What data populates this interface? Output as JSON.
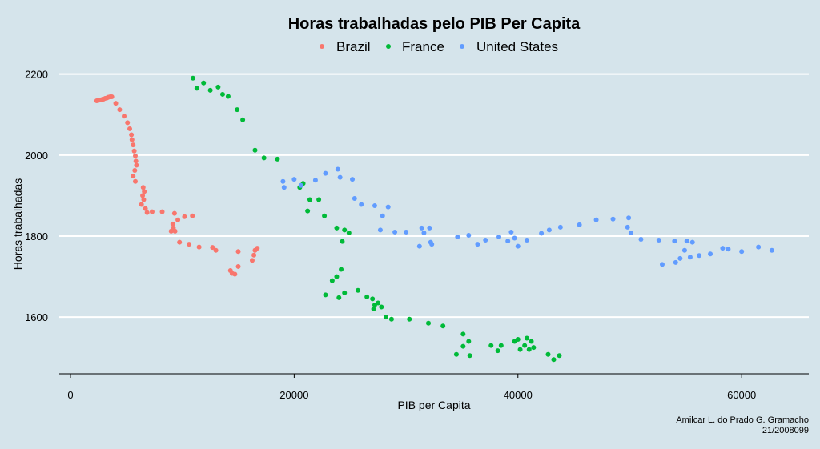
{
  "chart_data": {
    "type": "scatter",
    "title": "Horas trabalhadas pelo PIB Per Capita",
    "xlabel": "PIB per Capita",
    "ylabel": "Horas trabalhadas",
    "xlim": [
      -1000,
      66000
    ],
    "ylim": [
      1460,
      2225
    ],
    "x_ticks": [
      0,
      20000,
      40000,
      60000
    ],
    "y_ticks": [
      1600,
      1800,
      2000,
      2200
    ],
    "grid": "horizontal-major",
    "legend_position": "top",
    "series": [
      {
        "name": "Brazil",
        "color": "#f8766d",
        "points": [
          [
            2350,
            2134
          ],
          [
            2500,
            2135
          ],
          [
            2650,
            2136
          ],
          [
            2800,
            2137
          ],
          [
            2950,
            2138
          ],
          [
            3100,
            2140
          ],
          [
            3250,
            2141
          ],
          [
            3400,
            2143
          ],
          [
            3550,
            2144
          ],
          [
            3700,
            2144
          ],
          [
            4050,
            2128
          ],
          [
            4400,
            2112
          ],
          [
            4800,
            2096
          ],
          [
            5100,
            2080
          ],
          [
            5300,
            2065
          ],
          [
            5450,
            2050
          ],
          [
            5500,
            2038
          ],
          [
            5600,
            2025
          ],
          [
            5700,
            2010
          ],
          [
            5800,
            1998
          ],
          [
            5850,
            1985
          ],
          [
            5900,
            1975
          ],
          [
            5750,
            1962
          ],
          [
            5600,
            1948
          ],
          [
            5800,
            1935
          ],
          [
            6500,
            1920
          ],
          [
            6600,
            1910
          ],
          [
            6450,
            1900
          ],
          [
            6550,
            1890
          ],
          [
            6350,
            1878
          ],
          [
            6700,
            1868
          ],
          [
            6850,
            1858
          ],
          [
            7300,
            1860
          ],
          [
            8200,
            1860
          ],
          [
            9300,
            1856
          ],
          [
            10200,
            1848
          ],
          [
            10900,
            1850
          ],
          [
            9600,
            1840
          ],
          [
            9150,
            1830
          ],
          [
            9200,
            1820
          ],
          [
            9350,
            1812
          ],
          [
            9000,
            1812
          ],
          [
            9750,
            1785
          ],
          [
            10600,
            1780
          ],
          [
            11500,
            1773
          ],
          [
            12700,
            1772
          ],
          [
            13000,
            1765
          ],
          [
            14300,
            1715
          ],
          [
            14450,
            1708
          ],
          [
            14700,
            1706
          ],
          [
            15000,
            1725
          ],
          [
            15000,
            1762
          ],
          [
            16250,
            1740
          ],
          [
            16400,
            1753
          ],
          [
            16500,
            1765
          ],
          [
            16700,
            1770
          ]
        ]
      },
      {
        "name": "France",
        "color": "#00ba38",
        "points": [
          [
            10950,
            2190
          ],
          [
            11300,
            2165
          ],
          [
            11900,
            2178
          ],
          [
            12500,
            2160
          ],
          [
            13200,
            2168
          ],
          [
            13600,
            2150
          ],
          [
            14100,
            2145
          ],
          [
            14900,
            2112
          ],
          [
            15400,
            2087
          ],
          [
            16500,
            2012
          ],
          [
            17300,
            1993
          ],
          [
            18500,
            1990
          ],
          [
            20500,
            1920
          ],
          [
            20800,
            1930
          ],
          [
            21400,
            1890
          ],
          [
            21200,
            1862
          ],
          [
            22200,
            1890
          ],
          [
            22700,
            1850
          ],
          [
            23800,
            1820
          ],
          [
            24300,
            1787
          ],
          [
            24500,
            1815
          ],
          [
            24900,
            1808
          ],
          [
            22800,
            1655
          ],
          [
            23400,
            1690
          ],
          [
            23800,
            1700
          ],
          [
            24200,
            1718
          ],
          [
            24500,
            1660
          ],
          [
            24000,
            1648
          ],
          [
            25700,
            1666
          ],
          [
            26500,
            1650
          ],
          [
            27000,
            1645
          ],
          [
            27200,
            1630
          ],
          [
            27500,
            1635
          ],
          [
            27800,
            1625
          ],
          [
            27100,
            1620
          ],
          [
            28200,
            1600
          ],
          [
            28700,
            1595
          ],
          [
            30300,
            1595
          ],
          [
            32000,
            1585
          ],
          [
            33300,
            1578
          ],
          [
            34500,
            1508
          ],
          [
            35100,
            1558
          ],
          [
            35100,
            1528
          ],
          [
            35600,
            1540
          ],
          [
            35700,
            1505
          ],
          [
            37600,
            1530
          ],
          [
            38200,
            1517
          ],
          [
            38500,
            1530
          ],
          [
            39700,
            1540
          ],
          [
            40000,
            1545
          ],
          [
            40200,
            1520
          ],
          [
            40600,
            1530
          ],
          [
            40800,
            1548
          ],
          [
            41000,
            1520
          ],
          [
            41200,
            1540
          ],
          [
            41400,
            1525
          ],
          [
            42700,
            1508
          ],
          [
            43200,
            1495
          ],
          [
            43700,
            1505
          ]
        ]
      },
      {
        "name": "United States",
        "color": "#619cff",
        "points": [
          [
            19000,
            1935
          ],
          [
            19100,
            1920
          ],
          [
            20000,
            1940
          ],
          [
            20600,
            1925
          ],
          [
            21900,
            1938
          ],
          [
            22800,
            1955
          ],
          [
            23900,
            1965
          ],
          [
            24100,
            1945
          ],
          [
            25200,
            1940
          ],
          [
            25400,
            1893
          ],
          [
            26000,
            1878
          ],
          [
            27200,
            1875
          ],
          [
            27900,
            1850
          ],
          [
            28400,
            1872
          ],
          [
            27700,
            1815
          ],
          [
            29000,
            1810
          ],
          [
            30000,
            1810
          ],
          [
            31200,
            1775
          ],
          [
            31400,
            1820
          ],
          [
            31600,
            1808
          ],
          [
            32100,
            1820
          ],
          [
            32200,
            1785
          ],
          [
            32300,
            1780
          ],
          [
            34600,
            1798
          ],
          [
            35600,
            1802
          ],
          [
            36400,
            1780
          ],
          [
            37100,
            1790
          ],
          [
            38300,
            1798
          ],
          [
            39100,
            1788
          ],
          [
            39400,
            1810
          ],
          [
            39700,
            1795
          ],
          [
            40000,
            1775
          ],
          [
            40800,
            1790
          ],
          [
            42100,
            1807
          ],
          [
            42800,
            1815
          ],
          [
            43800,
            1822
          ],
          [
            45500,
            1828
          ],
          [
            47000,
            1840
          ],
          [
            48500,
            1842
          ],
          [
            49800,
            1822
          ],
          [
            49900,
            1845
          ],
          [
            50100,
            1808
          ],
          [
            51000,
            1792
          ],
          [
            52600,
            1790
          ],
          [
            52900,
            1730
          ],
          [
            54100,
            1735
          ],
          [
            54000,
            1788
          ],
          [
            54500,
            1745
          ],
          [
            54900,
            1765
          ],
          [
            55100,
            1788
          ],
          [
            55400,
            1748
          ],
          [
            55600,
            1785
          ],
          [
            56200,
            1752
          ],
          [
            57200,
            1756
          ],
          [
            58300,
            1770
          ],
          [
            58800,
            1768
          ],
          [
            60000,
            1762
          ],
          [
            61500,
            1773
          ],
          [
            62700,
            1765
          ]
        ]
      }
    ]
  },
  "caption": {
    "line1": "Amilcar L. do Prado G. Gramacho",
    "line2": "21/2008099"
  }
}
